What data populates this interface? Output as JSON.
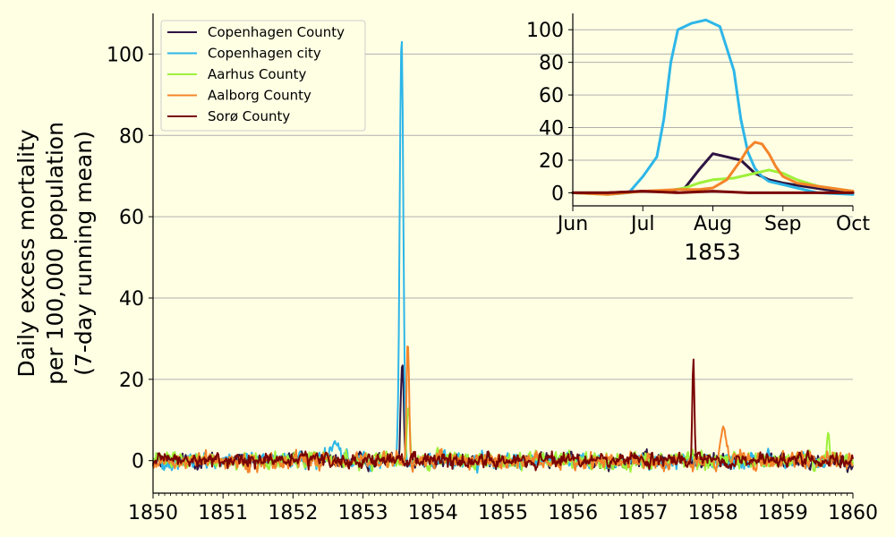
{
  "chart_data": [
    {
      "type": "line",
      "ylabel_lines": [
        "Daily excess mortality",
        "per 100,000 population",
        "(7-day running mean)"
      ],
      "xlabel": "",
      "xlim": [
        1850,
        1860
      ],
      "ylim": [
        -8,
        110
      ],
      "xticks": [
        "1850",
        "1851",
        "1852",
        "1853",
        "1854",
        "1855",
        "1856",
        "1857",
        "1858",
        "1859",
        "1860"
      ],
      "yticks": [
        "0",
        "20",
        "40",
        "60",
        "80",
        "100"
      ],
      "grid": "horizontal",
      "legend_position": "top-left",
      "series": [
        {
          "name": "Copenhagen County",
          "color": "#2d1342",
          "noise": 1.5,
          "peaks": [
            {
              "x": 1853.56,
              "y": 25,
              "w": 0.03
            }
          ]
        },
        {
          "name": "Copenhagen city",
          "color": "#2db6e8",
          "noise": 1.6,
          "peaks": [
            {
              "x": 1853.55,
              "y": 106,
              "w": 0.035
            },
            {
              "x": 1852.6,
              "y": 4,
              "w": 0.1
            }
          ]
        },
        {
          "name": "Aarhus County",
          "color": "#9ef03a",
          "noise": 1.8,
          "peaks": [
            {
              "x": 1853.65,
              "y": 13,
              "w": 0.03
            },
            {
              "x": 1859.65,
              "y": 6,
              "w": 0.02
            }
          ]
        },
        {
          "name": "Aalborg County",
          "color": "#f4842a",
          "noise": 1.7,
          "peaks": [
            {
              "x": 1853.64,
              "y": 31,
              "w": 0.025
            },
            {
              "x": 1858.15,
              "y": 9,
              "w": 0.05
            }
          ]
        },
        {
          "name": "Sorø County",
          "color": "#7a0403",
          "noise": 1.4,
          "peaks": [
            {
              "x": 1857.72,
              "y": 26,
              "w": 0.02
            }
          ]
        }
      ]
    },
    {
      "type": "line",
      "xlabel": "1853",
      "xlim": [
        0,
        4
      ],
      "ylim": [
        -8,
        110
      ],
      "xticks": [
        "Jun",
        "Jul",
        "Aug",
        "Sep",
        "Oct"
      ],
      "yticks": [
        "0",
        "20",
        "40",
        "60",
        "80",
        "100"
      ],
      "grid": "horizontal",
      "series": [
        {
          "name": "Copenhagen County",
          "color": "#2d1342",
          "x": [
            0,
            0.5,
            1,
            1.4,
            1.6,
            1.8,
            2.0,
            2.2,
            2.4,
            2.6,
            2.8,
            3.0,
            3.3,
            3.6,
            4.0
          ],
          "y": [
            0,
            0,
            1,
            1,
            3,
            14,
            24,
            22,
            20,
            12,
            8,
            6,
            4,
            2,
            0
          ]
        },
        {
          "name": "Copenhagen city",
          "color": "#2db6e8",
          "x": [
            0,
            0.5,
            0.8,
            1.0,
            1.2,
            1.3,
            1.4,
            1.5,
            1.7,
            1.9,
            2.1,
            2.3,
            2.4,
            2.5,
            2.6,
            2.7,
            2.8,
            3.0,
            3.2,
            3.5,
            4.0
          ],
          "y": [
            0,
            -1,
            0,
            10,
            22,
            45,
            80,
            100,
            104,
            106,
            102,
            75,
            45,
            25,
            15,
            10,
            7,
            5,
            3,
            0,
            -1
          ]
        },
        {
          "name": "Aarhus County",
          "color": "#9ef03a",
          "x": [
            0,
            0.5,
            1.0,
            1.3,
            1.6,
            1.8,
            2.0,
            2.3,
            2.6,
            2.8,
            3.0,
            3.2,
            3.5,
            4.0
          ],
          "y": [
            0,
            -1,
            1,
            1,
            3,
            6,
            8,
            9,
            12,
            14,
            12,
            8,
            4,
            1
          ]
        },
        {
          "name": "Aalborg County",
          "color": "#f4842a",
          "x": [
            0,
            0.5,
            1.0,
            1.5,
            1.8,
            2.0,
            2.2,
            2.4,
            2.5,
            2.6,
            2.7,
            2.8,
            2.9,
            3.0,
            3.2,
            3.5,
            4.0
          ],
          "y": [
            0,
            -1,
            1,
            2,
            2,
            3,
            8,
            20,
            27,
            31,
            30,
            24,
            16,
            10,
            6,
            4,
            1
          ]
        },
        {
          "name": "Sorø County",
          "color": "#7a0403",
          "x": [
            0,
            0.5,
            1.0,
            1.5,
            2.0,
            2.5,
            3.0,
            3.5,
            4.0
          ],
          "y": [
            0,
            0,
            1,
            0,
            1,
            0,
            0,
            0,
            0
          ]
        }
      ]
    }
  ]
}
